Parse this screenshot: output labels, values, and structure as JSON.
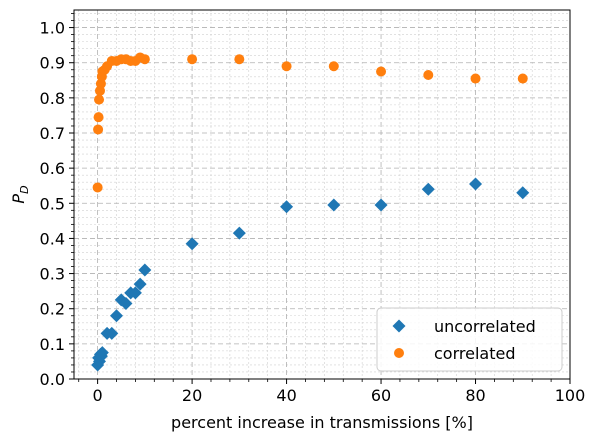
{
  "chart_data": {
    "type": "scatter",
    "xlabel": "percent increase in transmissions [%]",
    "ylabel": "P",
    "ylabel_subscript": "D",
    "xlim": [
      -5,
      100
    ],
    "ylim": [
      0,
      1.05
    ],
    "x_ticks": [
      0,
      20,
      40,
      60,
      80,
      100
    ],
    "y_ticks": [
      0.0,
      0.1,
      0.2,
      0.3,
      0.4,
      0.5,
      0.6,
      0.7,
      0.8,
      0.9,
      1.0
    ],
    "x_tick_labels": [
      "0",
      "20",
      "40",
      "60",
      "80",
      "100"
    ],
    "y_tick_labels": [
      "0.0",
      "0.1",
      "0.2",
      "0.3",
      "0.4",
      "0.5",
      "0.6",
      "0.7",
      "0.8",
      "0.9",
      "1.0"
    ],
    "grid": true,
    "minor_grid": true,
    "legend_position": "bottom-right",
    "series": [
      {
        "name": "uncorrelated",
        "marker": "diamond",
        "color": "#1f77b4",
        "x": [
          0,
          0.2,
          0.4,
          0.6,
          0.8,
          1,
          2,
          3,
          4,
          5,
          6,
          7,
          8,
          9,
          10,
          20,
          30,
          40,
          50,
          60,
          70,
          80,
          90
        ],
        "y": [
          0.04,
          0.06,
          0.05,
          0.07,
          0.065,
          0.075,
          0.13,
          0.13,
          0.18,
          0.225,
          0.215,
          0.245,
          0.245,
          0.27,
          0.31,
          0.385,
          0.415,
          0.49,
          0.495,
          0.495,
          0.54,
          0.555,
          0.53
        ]
      },
      {
        "name": "correlated",
        "marker": "circle",
        "color": "#ff7f0e",
        "x": [
          0,
          0.1,
          0.2,
          0.3,
          0.5,
          0.7,
          0.9,
          1,
          1.5,
          2,
          3,
          4,
          5,
          6,
          7,
          8,
          9,
          10,
          20,
          30,
          40,
          50,
          60,
          70,
          80,
          90
        ],
        "y": [
          0.545,
          0.71,
          0.745,
          0.795,
          0.82,
          0.84,
          0.86,
          0.875,
          0.88,
          0.89,
          0.905,
          0.905,
          0.91,
          0.91,
          0.905,
          0.905,
          0.915,
          0.91,
          0.91,
          0.91,
          0.89,
          0.89,
          0.875,
          0.865,
          0.855,
          0.855
        ]
      }
    ]
  }
}
